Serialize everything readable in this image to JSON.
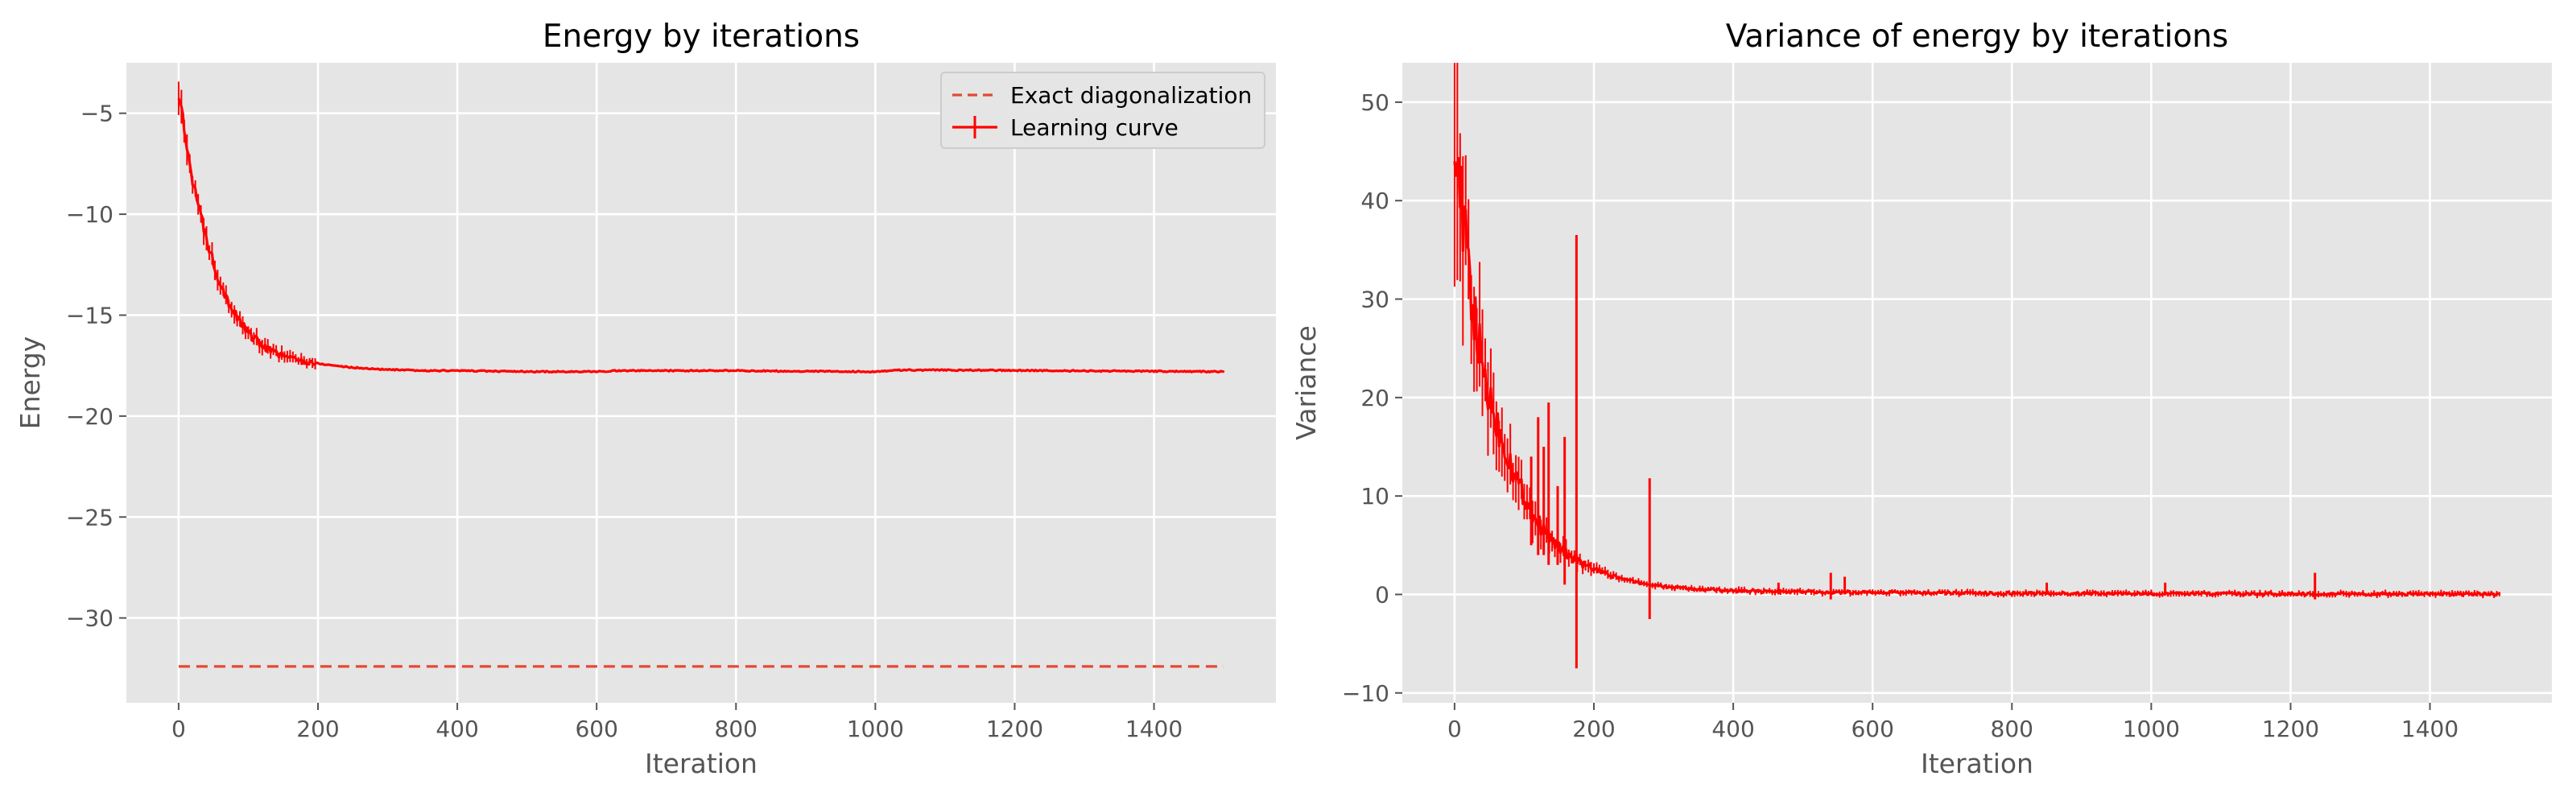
{
  "chart_data": [
    {
      "type": "line",
      "title": "Energy by iterations",
      "xlabel": "Iteration",
      "ylabel": "Energy",
      "xlim": [
        -75,
        1575
      ],
      "ylim": [
        -34.2,
        -2.5
      ],
      "xticks": [
        0,
        200,
        400,
        600,
        800,
        1000,
        1200,
        1400
      ],
      "yticks": [
        -30,
        -25,
        -20,
        -15,
        -10,
        -5
      ],
      "xtick_labels": [
        "0",
        "200",
        "400",
        "600",
        "800",
        "1000",
        "1200",
        "1400"
      ],
      "ytick_labels": [
        "−30",
        "−25",
        "−20",
        "−15",
        "−10",
        "−5"
      ],
      "grid": true,
      "legend_position": "upper right",
      "series": [
        {
          "name": "Exact diagonalization",
          "style": "dashed",
          "color": "#e24a33",
          "x": [
            0,
            1500
          ],
          "y": [
            -32.4,
            -32.4
          ]
        },
        {
          "name": "Learning curve",
          "style": "solid-with-errorbars",
          "color": "#ff0000",
          "x": [
            0,
            10,
            20,
            30,
            40,
            50,
            60,
            70,
            80,
            90,
            100,
            120,
            140,
            160,
            180,
            200,
            250,
            300,
            350,
            400,
            500,
            600,
            630,
            700,
            800,
            900,
            1000,
            1030,
            1100,
            1200,
            1300,
            1400,
            1500
          ],
          "y": [
            -4.0,
            -6.3,
            -8.2,
            -9.9,
            -11.2,
            -12.4,
            -13.4,
            -14.2,
            -14.9,
            -15.4,
            -15.9,
            -16.5,
            -16.9,
            -17.1,
            -17.3,
            -17.4,
            -17.6,
            -17.7,
            -17.75,
            -17.75,
            -17.8,
            -17.8,
            -17.75,
            -17.75,
            -17.75,
            -17.78,
            -17.8,
            -17.72,
            -17.72,
            -17.74,
            -17.76,
            -17.78,
            -17.8
          ]
        }
      ]
    },
    {
      "type": "line",
      "title": "Variance of energy by iterations",
      "xlabel": "Iteration",
      "ylabel": "Variance",
      "xlim": [
        -75,
        1575
      ],
      "ylim": [
        -11,
        54
      ],
      "xticks": [
        0,
        200,
        400,
        600,
        800,
        1000,
        1200,
        1400
      ],
      "yticks": [
        -10,
        0,
        10,
        20,
        30,
        40,
        50
      ],
      "xtick_labels": [
        "0",
        "200",
        "400",
        "600",
        "800",
        "1000",
        "1200",
        "1400"
      ],
      "ytick_labels": [
        "−10",
        "0",
        "10",
        "20",
        "30",
        "40",
        "50"
      ],
      "grid": true,
      "series": [
        {
          "color": "#ff0000",
          "style": "solid-with-errorbars",
          "x": [
            0,
            5,
            10,
            15,
            20,
            25,
            30,
            40,
            50,
            60,
            70,
            80,
            90,
            100,
            110,
            120,
            130,
            140,
            150,
            160,
            170,
            180,
            200,
            220,
            250,
            280,
            300,
            350,
            400,
            450,
            500,
            600,
            700,
            800,
            900,
            1000,
            1100,
            1200,
            1300,
            1400,
            1500
          ],
          "y": [
            50,
            44,
            39,
            36,
            33,
            30,
            27,
            23,
            20,
            17.5,
            15.5,
            13.5,
            11.5,
            10,
            8.5,
            7.3,
            6.3,
            5.5,
            4.8,
            4.2,
            3.7,
            3.2,
            2.6,
            2.0,
            1.4,
            1.0,
            0.8,
            0.5,
            0.4,
            0.3,
            0.25,
            0.2,
            0.15,
            0.12,
            0.1,
            0.08,
            0.07,
            0.06,
            0.05,
            0.05,
            0.05
          ]
        }
      ],
      "error_spikes": [
        {
          "x": 110,
          "low": 5,
          "high": 14
        },
        {
          "x": 120,
          "low": 4,
          "high": 18
        },
        {
          "x": 128,
          "low": 4,
          "high": 15
        },
        {
          "x": 135,
          "low": 3,
          "high": 19.5
        },
        {
          "x": 148,
          "low": 3,
          "high": 11
        },
        {
          "x": 158,
          "low": 1,
          "high": 16
        },
        {
          "x": 175,
          "low": -7.5,
          "high": 36.5
        },
        {
          "x": 280,
          "low": -2.5,
          "high": 11.8
        },
        {
          "x": 465,
          "low": 0,
          "high": 1.2
        },
        {
          "x": 540,
          "low": -0.5,
          "high": 2.2
        },
        {
          "x": 560,
          "low": 0,
          "high": 1.8
        },
        {
          "x": 850,
          "low": 0,
          "high": 1.2
        },
        {
          "x": 1020,
          "low": 0,
          "high": 1.2
        },
        {
          "x": 1235,
          "low": -0.5,
          "high": 2.2
        }
      ]
    }
  ]
}
